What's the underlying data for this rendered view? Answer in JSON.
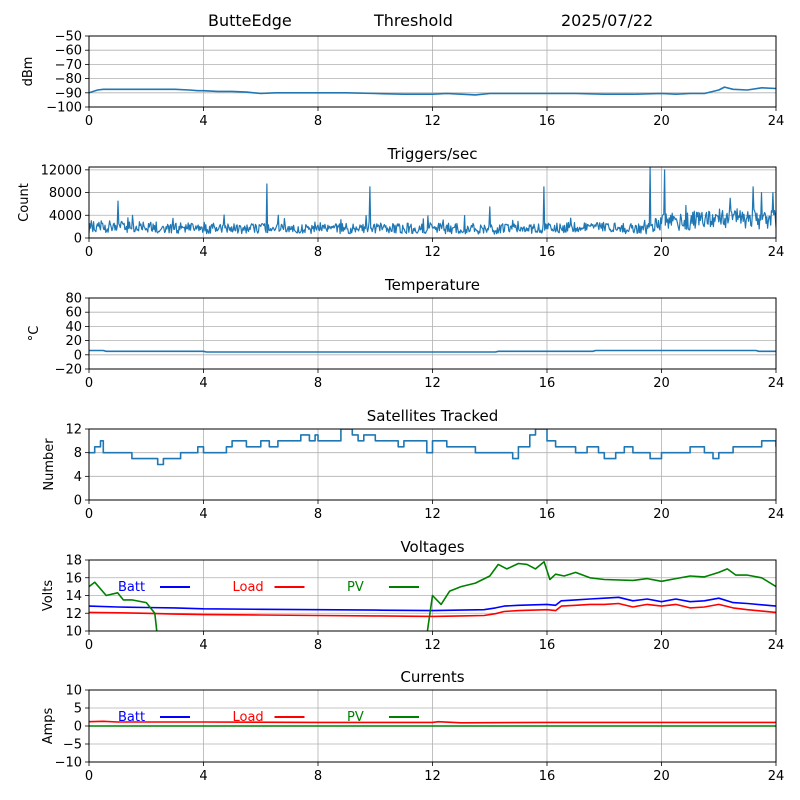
{
  "header": {
    "station": "ButteEdge",
    "mode": "Threshold",
    "date": "2025/07/22"
  },
  "colors": {
    "series_default": "#1f77b4",
    "batt": "#0000ff",
    "load": "#ff0000",
    "pv": "#008000",
    "grid": "#b0b0b0"
  },
  "chart_data": [
    {
      "type": "line",
      "title": "",
      "xlabel": "",
      "ylabel": "dBm",
      "xlim": [
        0,
        24
      ],
      "ylim": [
        -100,
        -50
      ],
      "xticks": [
        0,
        4,
        8,
        12,
        16,
        20,
        24
      ],
      "yticks": [
        -100,
        -90,
        -80,
        -70,
        -60,
        -50
      ],
      "grid": true,
      "series": [
        {
          "color": "#1f77b4",
          "x": [
            0,
            0.3,
            0.5,
            1,
            2,
            3,
            3.5,
            3.8,
            4,
            4.5,
            5,
            5.5,
            6,
            6.5,
            7,
            8,
            9,
            10,
            11,
            12,
            12.5,
            13,
            13.5,
            14,
            15,
            16,
            17,
            18,
            19,
            20,
            20.5,
            21,
            21.5,
            22,
            22.2,
            22.5,
            23,
            23.5,
            24
          ],
          "y": [
            -90,
            -88,
            -87.5,
            -87.5,
            -87.5,
            -87.5,
            -88,
            -88.5,
            -88.5,
            -89,
            -89,
            -89.5,
            -90.5,
            -90,
            -90,
            -90,
            -90,
            -90.5,
            -91,
            -91,
            -90.5,
            -91,
            -91.5,
            -90.5,
            -90.5,
            -90.5,
            -90.5,
            -91,
            -91,
            -90.5,
            -91,
            -90.5,
            -90.5,
            -88,
            -86,
            -87.5,
            -88,
            -86.5,
            -87
          ]
        }
      ]
    },
    {
      "type": "line",
      "title": "Triggers/sec",
      "xlabel": "",
      "ylabel": "Count",
      "xlim": [
        0,
        24
      ],
      "ylim": [
        0,
        12500
      ],
      "xticks": [
        0,
        4,
        8,
        12,
        16,
        20,
        24
      ],
      "yticks": [
        0,
        4000,
        8000,
        12000
      ],
      "grid": true,
      "series": [
        {
          "color": "#1f77b4",
          "noisy": true,
          "baseline_x": [
            0,
            4,
            8,
            12,
            14,
            16,
            18,
            19.5,
            20,
            22,
            24
          ],
          "baseline_y": [
            2000,
            1700,
            1600,
            1800,
            1500,
            1700,
            1800,
            1600,
            2800,
            3300,
            3500
          ],
          "spikes": [
            [
              1.0,
              6500
            ],
            [
              6.2,
              9500
            ],
            [
              9.8,
              9000
            ],
            [
              14.0,
              5500
            ],
            [
              15.9,
              9000
            ],
            [
              19.6,
              12500
            ],
            [
              20.1,
              12000
            ],
            [
              22.4,
              7000
            ],
            [
              23.2,
              9000
            ],
            [
              23.5,
              8000
            ],
            [
              23.9,
              8000
            ]
          ]
        }
      ]
    },
    {
      "type": "line",
      "title": "Temperature",
      "xlabel": "",
      "ylabel": "°C",
      "xlim": [
        0,
        24
      ],
      "ylim": [
        -20,
        80
      ],
      "xticks": [
        0,
        4,
        8,
        12,
        16,
        20,
        24
      ],
      "yticks": [
        -20,
        0,
        20,
        40,
        60,
        80
      ],
      "grid": true,
      "series": [
        {
          "color": "#1f77b4",
          "x": [
            0,
            0.5,
            0.6,
            4,
            4.1,
            14.2,
            14.3,
            17.6,
            17.7,
            23.3,
            23.4,
            24
          ],
          "y": [
            6,
            6,
            5,
            5,
            4,
            4,
            5,
            5,
            6,
            6,
            5,
            5
          ]
        }
      ]
    },
    {
      "type": "line",
      "title": "Satellites Tracked",
      "xlabel": "",
      "ylabel": "Number",
      "xlim": [
        0,
        24
      ],
      "ylim": [
        0,
        12
      ],
      "xticks": [
        0,
        4,
        8,
        12,
        16,
        20,
        24
      ],
      "yticks": [
        0,
        4,
        8,
        12
      ],
      "grid": true,
      "step": true,
      "series": [
        {
          "color": "#1f77b4",
          "x": [
            0,
            0.2,
            0.4,
            0.5,
            1,
            1.5,
            2,
            2.4,
            2.6,
            3,
            3.2,
            3.6,
            3.8,
            4,
            4.3,
            4.8,
            5,
            5.5,
            5.7,
            6,
            6.3,
            6.6,
            7,
            7.4,
            7.7,
            7.9,
            8,
            8.6,
            8.8,
            9.2,
            9.4,
            9.6,
            10,
            10.5,
            10.8,
            11,
            11.7,
            11.8,
            12,
            12.5,
            13,
            13.5,
            14,
            14.8,
            15,
            15.4,
            15.6,
            16,
            16.3,
            16.6,
            17,
            17.4,
            17.8,
            18,
            18.4,
            18.7,
            19,
            19.3,
            19.6,
            20,
            20.3,
            20.6,
            21,
            21.5,
            21.8,
            22,
            22.5,
            23,
            23.5,
            24
          ],
          "y": [
            8,
            9,
            10,
            8,
            8,
            7,
            7,
            6,
            7,
            7,
            8,
            8,
            9,
            8,
            8,
            9,
            10,
            9,
            9,
            10,
            9,
            10,
            10,
            11,
            10,
            11,
            10,
            10,
            12,
            11,
            10,
            11,
            10,
            10,
            9,
            10,
            10,
            8,
            10,
            9,
            9,
            8,
            8,
            7,
            9,
            11,
            12,
            10,
            9,
            9,
            8,
            9,
            8,
            7,
            8,
            9,
            8,
            8,
            7,
            8,
            8,
            8,
            9,
            8,
            7,
            8,
            9,
            9,
            10,
            9
          ]
        }
      ]
    },
    {
      "type": "line",
      "title": "Voltages",
      "xlabel": "",
      "ylabel": "Volts",
      "xlim": [
        0,
        24
      ],
      "ylim": [
        10,
        18
      ],
      "xticks": [
        0,
        4,
        8,
        12,
        16,
        20,
        24
      ],
      "yticks": [
        10,
        12,
        14,
        16,
        18
      ],
      "grid": true,
      "legend": "top-left, horizontal",
      "series": [
        {
          "name": "Batt",
          "color": "#0000ff",
          "x": [
            0,
            1,
            2,
            3,
            4,
            6,
            8,
            10,
            12,
            13,
            13.8,
            14.2,
            14.5,
            15,
            16,
            16.3,
            16.5,
            17,
            17.5,
            18,
            18.5,
            19,
            19.5,
            20,
            20.5,
            21,
            21.5,
            22,
            22.5,
            23,
            24
          ],
          "y": [
            12.8,
            12.7,
            12.65,
            12.6,
            12.5,
            12.45,
            12.4,
            12.35,
            12.3,
            12.35,
            12.4,
            12.6,
            12.8,
            12.9,
            13.0,
            12.9,
            13.4,
            13.5,
            13.6,
            13.7,
            13.8,
            13.4,
            13.6,
            13.3,
            13.6,
            13.3,
            13.4,
            13.7,
            13.2,
            13.1,
            12.8
          ]
        },
        {
          "name": "Load",
          "color": "#ff0000",
          "x": [
            0,
            1,
            2,
            3,
            4,
            6,
            8,
            10,
            12,
            13,
            13.8,
            14.2,
            14.5,
            15,
            16,
            16.3,
            16.5,
            17,
            17.5,
            18,
            18.5,
            19,
            19.5,
            20,
            20.5,
            21,
            21.5,
            22,
            22.5,
            23,
            24
          ],
          "y": [
            12.1,
            12.05,
            12.0,
            11.9,
            11.85,
            11.8,
            11.75,
            11.7,
            11.65,
            11.7,
            11.75,
            11.95,
            12.2,
            12.3,
            12.4,
            12.3,
            12.8,
            12.9,
            13.0,
            13.0,
            13.1,
            12.7,
            13.0,
            12.8,
            13.0,
            12.6,
            12.7,
            13.0,
            12.6,
            12.4,
            12.1
          ]
        },
        {
          "name": "PV",
          "color": "#008000",
          "x": [
            0,
            0.2,
            0.6,
            1,
            1.2,
            1.5,
            2,
            2.1,
            2.3,
            2.35,
            2.4
          ],
          "y": [
            15.0,
            15.5,
            14.0,
            14.3,
            13.5,
            13.5,
            13.2,
            12.8,
            12.0,
            10.5,
            9.0
          ]
        },
        {
          "name": "PV",
          "color": "#008000",
          "x": [
            11.8,
            12.0,
            12.3,
            12.6,
            13,
            13.5,
            14,
            14.3,
            14.6,
            15,
            15.3,
            15.6,
            15.9,
            16.1,
            16.3,
            16.6,
            17,
            17.5,
            18,
            19,
            19.5,
            20,
            20.5,
            21,
            21.5,
            22,
            22.3,
            22.6,
            23,
            23.5,
            24
          ],
          "y": [
            9.5,
            14.0,
            13.0,
            14.5,
            15.0,
            15.4,
            16.2,
            17.5,
            17.0,
            17.6,
            17.5,
            17.0,
            17.8,
            15.8,
            16.4,
            16.2,
            16.6,
            16.0,
            15.8,
            15.7,
            15.9,
            15.6,
            15.9,
            16.2,
            16.1,
            16.6,
            17.0,
            16.3,
            16.3,
            16.0,
            15.0
          ]
        }
      ]
    },
    {
      "type": "line",
      "title": "Currents",
      "xlabel": "",
      "ylabel": "Amps",
      "xlim": [
        0,
        24
      ],
      "ylim": [
        -10,
        10
      ],
      "xticks": [
        0,
        4,
        8,
        12,
        16,
        20,
        24
      ],
      "yticks": [
        -10,
        -5,
        0,
        5,
        10
      ],
      "grid": true,
      "legend": "top-left, horizontal",
      "series": [
        {
          "name": "Load",
          "color": "#ff0000",
          "x": [
            0,
            0.5,
            1,
            2,
            4,
            8,
            12,
            12.2,
            13,
            16,
            20,
            24
          ],
          "y": [
            1.2,
            1.3,
            1.1,
            1.1,
            1.1,
            1.0,
            1.0,
            1.2,
            0.9,
            1.0,
            1.0,
            1.0
          ]
        },
        {
          "name": "PV",
          "color": "#008000",
          "x": [
            0,
            24
          ],
          "y": [
            0.0,
            0.0
          ]
        }
      ]
    }
  ],
  "legend_labels": [
    "Batt",
    "Load",
    "PV"
  ]
}
